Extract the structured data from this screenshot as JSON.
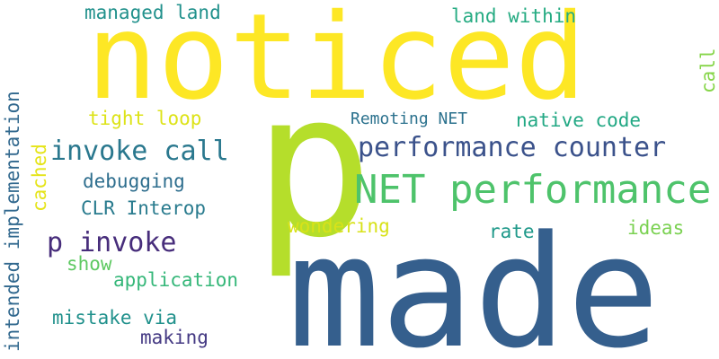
{
  "words": {
    "made": {
      "text": "made",
      "color": "#355f8d"
    },
    "noticed": {
      "text": "noticed",
      "color": "#fde725"
    },
    "p": {
      "text": "p",
      "color": "#b5de2b"
    },
    "net_performance": {
      "text": "NET performance",
      "color": "#4ec36b"
    },
    "performance_counter": {
      "text": "performance counter",
      "color": "#3b528b"
    },
    "invoke_call": {
      "text": "invoke call",
      "color": "#2a788e"
    },
    "p_invoke": {
      "text": "p invoke",
      "color": "#472d7b"
    },
    "intended_implementation": {
      "text": "intended implementation",
      "color": "#31688e"
    },
    "managed_land": {
      "text": "managed land",
      "color": "#21918c"
    },
    "land_within": {
      "text": "land within",
      "color": "#25ab82"
    },
    "tight_loop": {
      "text": "tight loop",
      "color": "#dde318"
    },
    "native_code": {
      "text": "native code",
      "color": "#22a884"
    },
    "remoting_net": {
      "text": "Remoting NET",
      "color": "#2c728e"
    },
    "debugging": {
      "text": "debugging",
      "color": "#2e6e8e"
    },
    "clr_interop": {
      "text": "CLR Interop",
      "color": "#297b8e"
    },
    "wondering": {
      "text": "wondering",
      "color": "#d8e219"
    },
    "rate": {
      "text": "rate",
      "color": "#1f998a"
    },
    "ideas": {
      "text": "ideas",
      "color": "#7ad151"
    },
    "show": {
      "text": "show",
      "color": "#5ec962"
    },
    "application": {
      "text": "application",
      "color": "#35b779"
    },
    "mistake_via": {
      "text": "mistake via",
      "color": "#21918c"
    },
    "making": {
      "text": "making",
      "color": "#443983"
    },
    "cached": {
      "text": "cached",
      "color": "#e5e419"
    },
    "call": {
      "text": "call",
      "color": "#86d549"
    }
  }
}
